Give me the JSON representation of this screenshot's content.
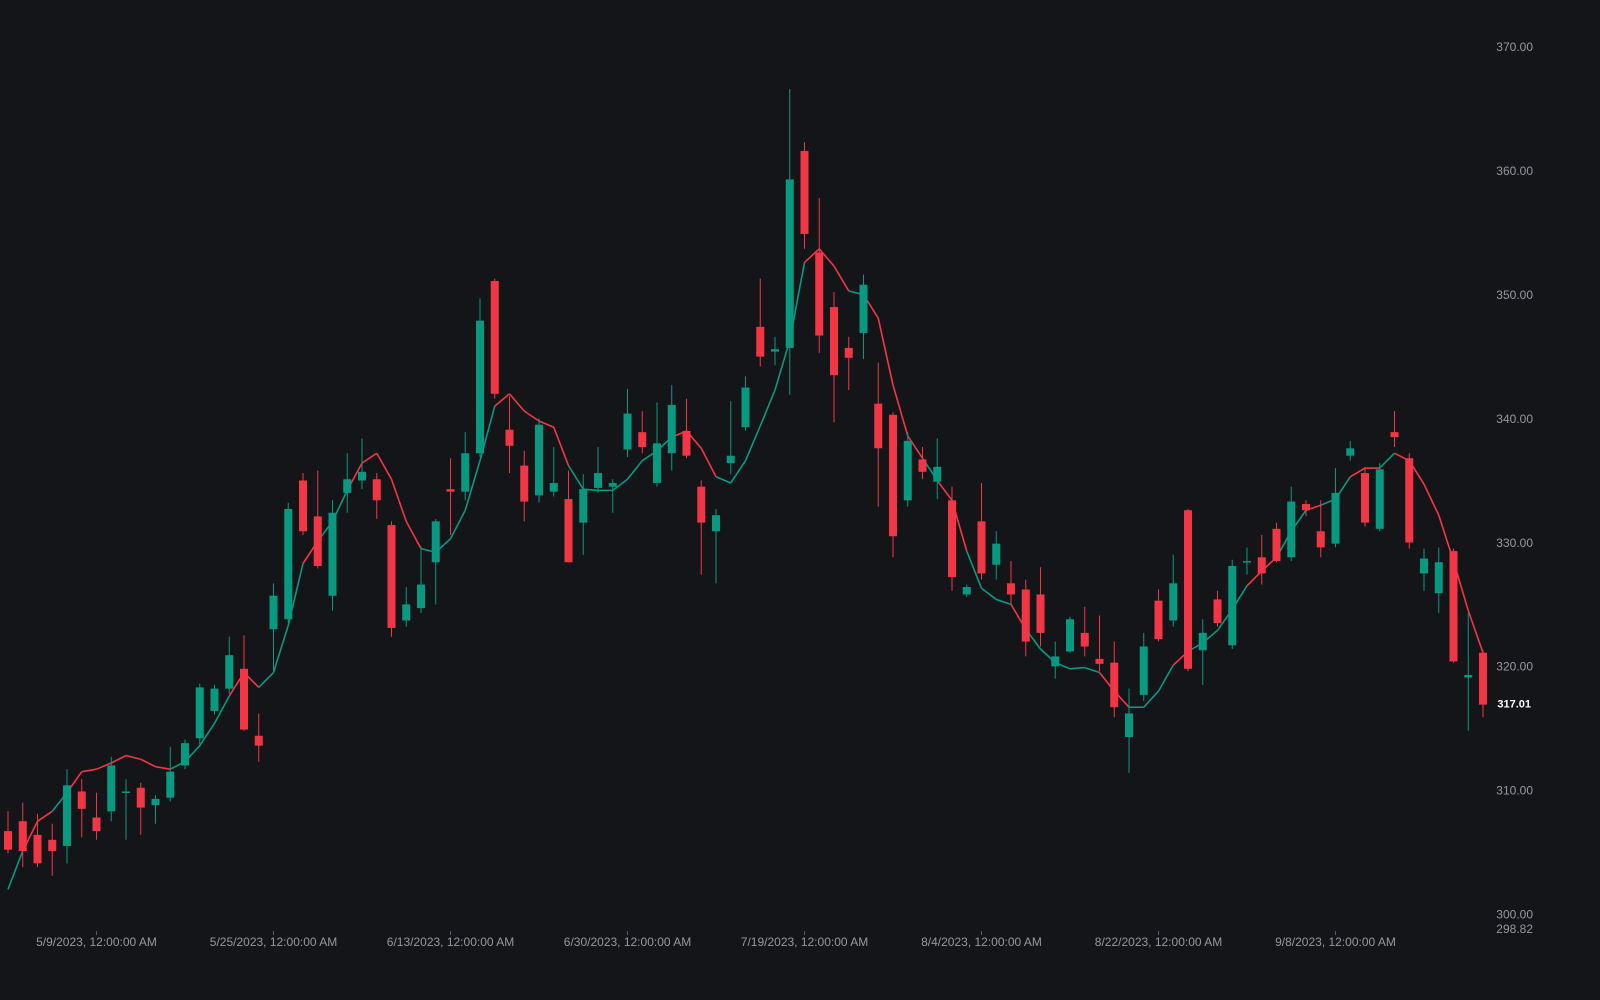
{
  "chart_data": {
    "type": "candlestick",
    "categories": [
      null,
      null,
      null,
      null,
      null,
      null,
      "5/9/2023, 12:00:00 AM",
      null,
      null,
      null,
      null,
      null,
      null,
      null,
      null,
      null,
      null,
      null,
      "5/25/2023, 12:00:00 AM",
      null,
      null,
      null,
      null,
      null,
      null,
      null,
      null,
      null,
      null,
      null,
      "6/13/2023, 12:00:00 AM",
      null,
      null,
      null,
      null,
      null,
      null,
      null,
      null,
      null,
      null,
      null,
      "6/30/2023, 12:00:00 AM",
      null,
      null,
      null,
      null,
      null,
      null,
      null,
      null,
      null,
      null,
      null,
      "7/19/2023, 12:00:00 AM",
      null,
      null,
      null,
      null,
      null,
      null,
      null,
      null,
      null,
      null,
      null,
      "8/4/2023, 12:00:00 AM",
      null,
      null,
      null,
      null,
      null,
      null,
      null,
      null,
      null,
      null,
      null,
      "8/22/2023, 12:00:00 AM",
      null,
      null,
      null,
      null,
      null,
      null,
      null,
      null,
      null,
      null,
      null,
      "9/8/2023, 12:00:00 AM",
      null,
      null,
      null,
      null,
      null,
      null,
      null,
      null,
      null,
      null
    ],
    "open": [
      306.8,
      307.6,
      306.5,
      306.1,
      305.6,
      310.0,
      307.9,
      308.4,
      309.9,
      310.3,
      308.9,
      309.5,
      312.1,
      314.3,
      316.5,
      318.3,
      319.9,
      314.5,
      323.1,
      323.9,
      335.1,
      332.2,
      325.8,
      334.1,
      335.1,
      335.2,
      331.5,
      323.8,
      324.8,
      328.5,
      334.4,
      334.2,
      337.3,
      351.2,
      339.2,
      336.3,
      333.9,
      334.2,
      333.6,
      331.7,
      334.5,
      334.6,
      337.6,
      339.0,
      334.9,
      337.3,
      339.1,
      334.6,
      331.0,
      336.5,
      339.4,
      347.5,
      345.5,
      345.8,
      361.7,
      353.5,
      349.1,
      345.8,
      347.0,
      341.3,
      340.4,
      333.5,
      336.8,
      335.0,
      333.5,
      325.9,
      331.8,
      328.3,
      326.8,
      326.3,
      325.9,
      320.1,
      321.3,
      322.8,
      320.7,
      320.4,
      314.4,
      317.8,
      325.4,
      323.8,
      332.7,
      321.4,
      325.5,
      321.8,
      328.5,
      328.9,
      331.2,
      328.9,
      333.2,
      331.0,
      330.0,
      337.1,
      335.7,
      331.2,
      339.0,
      336.9,
      327.6,
      326.0,
      329.4,
      319.2,
      321.2
    ],
    "high": [
      308.4,
      309.1,
      308.2,
      307.4,
      311.8,
      311.0,
      309.9,
      312.8,
      311.0,
      310.7,
      309.7,
      313.6,
      314.2,
      318.7,
      318.6,
      322.5,
      322.6,
      316.3,
      326.8,
      333.3,
      335.7,
      335.9,
      333.5,
      337.3,
      338.5,
      335.7,
      331.8,
      326.5,
      329.8,
      332.0,
      336.9,
      339.0,
      349.8,
      351.4,
      341.9,
      337.5,
      340.1,
      337.8,
      335.9,
      335.6,
      337.8,
      335.2,
      342.5,
      340.7,
      341.4,
      342.8,
      341.7,
      335.1,
      332.8,
      341.5,
      343.5,
      351.4,
      346.7,
      366.7,
      362.4,
      357.9,
      350.3,
      346.7,
      351.7,
      344.6,
      340.6,
      339.0,
      337.8,
      338.5,
      334.6,
      326.7,
      334.9,
      331.0,
      328.6,
      327.1,
      328.1,
      322.1,
      324.1,
      324.9,
      324.2,
      322.1,
      318.3,
      322.8,
      326.3,
      329.1,
      332.8,
      323.9,
      326.2,
      328.7,
      329.7,
      330.7,
      331.7,
      334.6,
      333.5,
      333.5,
      336.1,
      338.3,
      336.2,
      336.5,
      340.7,
      337.3,
      329.6,
      329.7,
      329.6,
      324.4,
      321.4
    ],
    "low": [
      305.0,
      303.9,
      303.9,
      303.2,
      304.2,
      306.3,
      306.1,
      307.6,
      306.1,
      306.5,
      307.4,
      309.2,
      311.8,
      313.6,
      316.2,
      317.9,
      314.9,
      312.4,
      319.7,
      323.6,
      330.7,
      328.0,
      324.6,
      332.5,
      334.4,
      332.0,
      322.5,
      323.3,
      324.4,
      325.1,
      330.7,
      333.5,
      337.0,
      341.7,
      335.7,
      331.8,
      333.3,
      333.8,
      328.5,
      329.1,
      334.1,
      332.5,
      337.0,
      337.3,
      334.6,
      335.9,
      336.9,
      327.5,
      326.8,
      335.6,
      339.1,
      344.3,
      344.4,
      342.0,
      353.8,
      345.4,
      339.8,
      342.4,
      344.9,
      333.0,
      328.9,
      333.0,
      335.2,
      333.6,
      326.2,
      325.7,
      327.1,
      327.1,
      325.1,
      320.9,
      321.7,
      319.1,
      321.2,
      320.9,
      319.7,
      316.0,
      311.5,
      317.3,
      322.1,
      323.3,
      319.7,
      318.6,
      323.3,
      321.5,
      327.5,
      326.7,
      328.5,
      328.6,
      332.2,
      328.9,
      329.7,
      336.7,
      331.4,
      331.0,
      337.8,
      329.6,
      326.2,
      324.4,
      320.4,
      314.9,
      316.0
    ],
    "close": [
      305.3,
      305.2,
      304.2,
      305.2,
      310.5,
      308.6,
      306.8,
      312.1,
      310.0,
      308.7,
      309.4,
      311.6,
      313.9,
      318.4,
      318.3,
      321.0,
      315.0,
      313.7,
      325.8,
      332.8,
      331.0,
      328.2,
      332.5,
      335.2,
      335.8,
      333.5,
      323.2,
      325.1,
      326.7,
      331.8,
      334.2,
      337.3,
      348.0,
      342.1,
      337.9,
      333.4,
      339.6,
      334.9,
      328.5,
      334.4,
      335.7,
      334.9,
      340.5,
      337.8,
      338.1,
      341.2,
      337.1,
      331.7,
      332.3,
      337.1,
      342.6,
      345.1,
      345.7,
      359.4,
      355.0,
      346.8,
      343.6,
      345.0,
      350.9,
      337.7,
      330.6,
      338.3,
      335.8,
      336.2,
      327.3,
      326.5,
      327.6,
      330.0,
      325.9,
      322.1,
      322.8,
      320.9,
      323.9,
      321.7,
      320.3,
      316.8,
      316.3,
      321.7,
      322.3,
      326.8,
      319.9,
      322.8,
      323.6,
      328.2,
      328.6,
      327.6,
      328.6,
      333.4,
      332.7,
      329.7,
      334.1,
      337.7,
      331.7,
      336.0,
      338.6,
      330.1,
      328.8,
      328.5,
      320.5,
      319.4,
      317.01
    ],
    "moving_average": [
      302.1,
      305.2,
      307.6,
      308.4,
      309.9,
      311.6,
      311.8,
      312.3,
      312.9,
      312.6,
      312.0,
      311.8,
      312.4,
      313.7,
      315.5,
      317.7,
      319.6,
      318.4,
      319.6,
      323.4,
      328.4,
      330.2,
      331.8,
      334.3,
      336.5,
      337.3,
      335.2,
      331.8,
      329.6,
      329.3,
      330.4,
      332.7,
      336.7,
      341.1,
      342.1,
      340.7,
      339.9,
      339.4,
      336.3,
      334.4,
      334.3,
      334.3,
      335.2,
      336.7,
      337.5,
      338.6,
      339.1,
      337.7,
      335.4,
      334.9,
      336.7,
      339.5,
      342.4,
      346.4,
      352.7,
      353.8,
      352.4,
      350.4,
      350.1,
      348.2,
      342.8,
      338.7,
      336.9,
      335.1,
      333.5,
      329.4,
      326.4,
      325.5,
      325.1,
      323.1,
      321.5,
      320.4,
      319.9,
      320.0,
      319.6,
      318.1,
      316.8,
      316.8,
      318.1,
      320.2,
      321.3,
      322.0,
      323.0,
      324.7,
      326.6,
      327.8,
      328.9,
      331.0,
      332.7,
      333.1,
      333.6,
      335.4,
      336.1,
      336.1,
      337.3,
      336.7,
      334.8,
      332.3,
      328.6,
      324.6,
      321.2
    ],
    "up_color": "#089981",
    "down_color": "#f23645",
    "ylim": [
      298.82,
      373.88
    ],
    "yticks": [
      {
        "value": 298.82,
        "label": "298.82"
      },
      {
        "value": 300,
        "label": "300.00"
      },
      {
        "value": 310,
        "label": "310.00"
      },
      {
        "value": 320,
        "label": "320.00"
      },
      {
        "value": 330,
        "label": "330.00"
      },
      {
        "value": 340,
        "label": "340.00"
      },
      {
        "value": 350,
        "label": "350.00"
      },
      {
        "value": 360,
        "label": "360.00"
      },
      {
        "value": 370,
        "label": "370.00"
      }
    ],
    "last_price": {
      "value": 317.01,
      "label": "317.01"
    }
  }
}
